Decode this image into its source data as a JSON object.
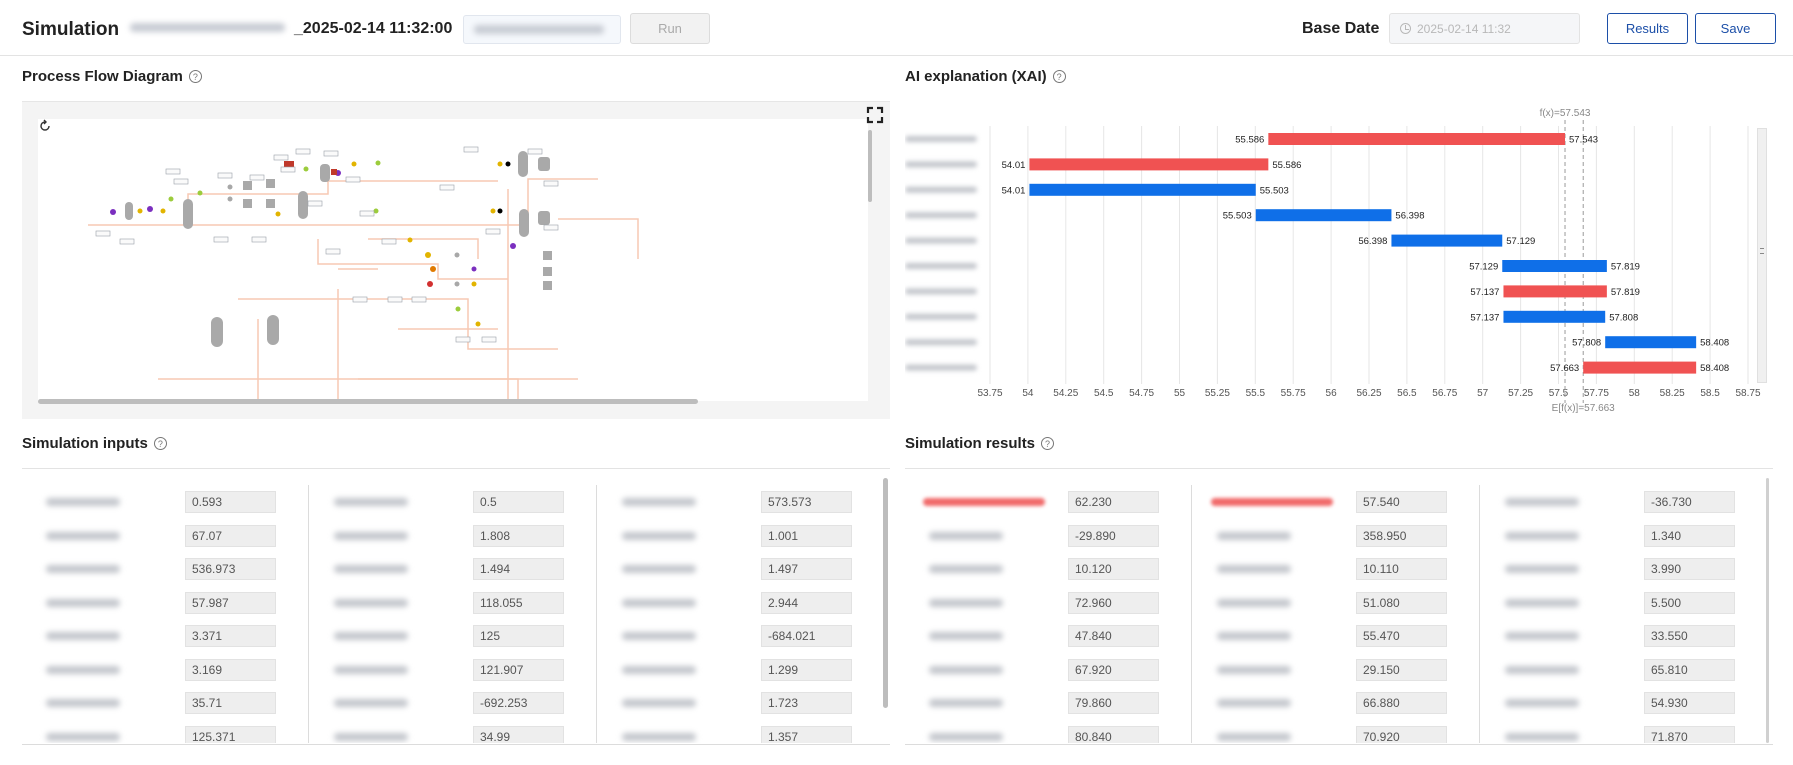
{
  "header": {
    "title": "Simulation",
    "simulation_name_suffix": "_2025-02-14 11:32:00",
    "run_label": "Run",
    "base_date_label": "Base Date",
    "base_date_placeholder": "2025-02-14 11:32",
    "results_label": "Results",
    "save_label": "Save"
  },
  "sections": {
    "pfd_title": "Process Flow Diagram",
    "xai_title": "AI explanation (XAI)",
    "inputs_title": "Simulation inputs",
    "results_title": "Simulation results"
  },
  "icons": {
    "help": "question-circle-icon",
    "refresh": "refresh-icon",
    "expand": "fullscreen-icon",
    "clock": "clock-icon"
  },
  "colors": {
    "accent": "#1c4fa8",
    "positive": "#f05252",
    "negative": "#0f6fe8"
  },
  "chart_data": {
    "type": "bar",
    "subtype": "waterfall",
    "annotation_top": "f(x)=57.543",
    "annotation_bottom": "E[f(x)]=57.663",
    "xlim": [
      53.75,
      58.75
    ],
    "xticks": [
      "53.75",
      "54",
      "54.25",
      "54.5",
      "54.75",
      "55",
      "55.25",
      "55.5",
      "55.75",
      "56",
      "56.25",
      "56.5",
      "56.75",
      "57",
      "57.25",
      "57.5",
      "57.75",
      "58",
      "58.25",
      "58.5",
      "58.75"
    ],
    "reference_lines": [
      57.543,
      57.663
    ],
    "bars": [
      {
        "start": 55.586,
        "end": 57.543,
        "start_label": "55.586",
        "end_label": "57.543",
        "sign": "positive"
      },
      {
        "start": 54.01,
        "end": 55.586,
        "start_label": "54.01",
        "end_label": "55.586",
        "sign": "positive"
      },
      {
        "start": 54.01,
        "end": 55.503,
        "start_label": "54.01",
        "end_label": "55.503",
        "sign": "negative"
      },
      {
        "start": 55.503,
        "end": 56.398,
        "start_label": "55.503",
        "end_label": "56.398",
        "sign": "negative"
      },
      {
        "start": 56.398,
        "end": 57.129,
        "start_label": "56.398",
        "end_label": "57.129",
        "sign": "negative"
      },
      {
        "start": 57.129,
        "end": 57.819,
        "start_label": "57.129",
        "end_label": "57.819",
        "sign": "negative"
      },
      {
        "start": 57.137,
        "end": 57.819,
        "start_label": "57.137",
        "end_label": "57.819",
        "sign": "positive"
      },
      {
        "start": 57.137,
        "end": 57.808,
        "start_label": "57.137",
        "end_label": "57.808",
        "sign": "negative"
      },
      {
        "start": 57.808,
        "end": 58.408,
        "start_label": "57.808",
        "end_label": "58.408",
        "sign": "negative"
      },
      {
        "start": 57.663,
        "end": 58.408,
        "start_label": "57.663",
        "end_label": "58.408",
        "sign": "positive"
      }
    ]
  },
  "inputs": {
    "columns": [
      [
        "0.593",
        "67.07",
        "536.973",
        "57.987",
        "3.371",
        "3.169",
        "35.71",
        "125.371"
      ],
      [
        "0.5",
        "1.808",
        "1.494",
        "118.055",
        "125",
        "121.907",
        "-692.253",
        "34.99"
      ],
      [
        "573.573",
        "1.001",
        "1.497",
        "2.944",
        "-684.021",
        "1.299",
        "1.723",
        "1.357"
      ]
    ]
  },
  "results": {
    "columns": [
      [
        "62.230",
        "-29.890",
        "10.120",
        "72.960",
        "47.840",
        "67.920",
        "79.860",
        "80.840"
      ],
      [
        "57.540",
        "358.950",
        "10.110",
        "51.080",
        "55.470",
        "29.150",
        "66.880",
        "70.920"
      ],
      [
        "-36.730",
        "1.340",
        "3.990",
        "5.500",
        "33.550",
        "65.810",
        "54.930",
        "71.870"
      ]
    ]
  }
}
